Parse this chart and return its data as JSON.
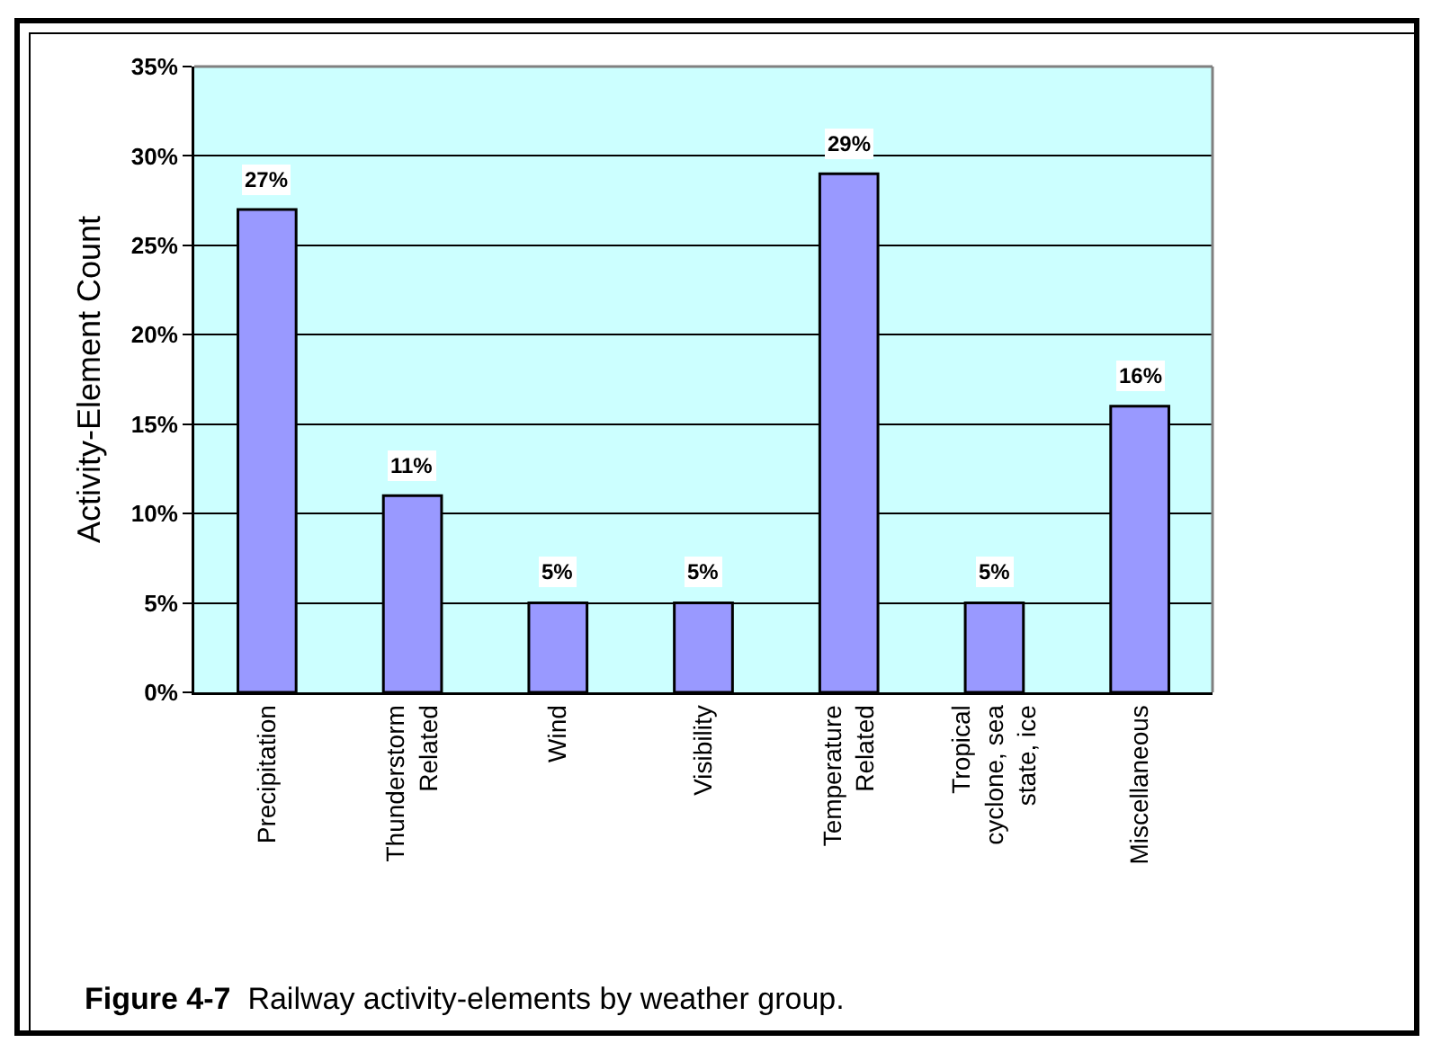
{
  "chart_data": {
    "type": "bar",
    "categories": [
      "Precipitation",
      "Thunderstorm Related",
      "Wind",
      "Visibility",
      "Temperature Related",
      "Tropical cyclone, sea state, ice",
      "Miscellaneous"
    ],
    "values": [
      27,
      11,
      5,
      5,
      29,
      5,
      16
    ],
    "value_labels": [
      "27%",
      "11%",
      "5%",
      "5%",
      "29%",
      "5%",
      "16%"
    ],
    "color": "#9999ff",
    "ylabel": "Activity-Element Count",
    "ylim": [
      0,
      35
    ],
    "yticks": [
      {
        "value": 0,
        "label": "0%"
      },
      {
        "value": 5,
        "label": "5%"
      },
      {
        "value": 10,
        "label": "10%"
      },
      {
        "value": 15,
        "label": "15%"
      },
      {
        "value": 20,
        "label": "20%"
      },
      {
        "value": 25,
        "label": "25%"
      },
      {
        "value": 30,
        "label": "30%"
      },
      {
        "value": 35,
        "label": "35%"
      }
    ],
    "grid": "y",
    "annotations": [
      "Figure 4-7  Railway activity-elements by weather group."
    ]
  }
}
